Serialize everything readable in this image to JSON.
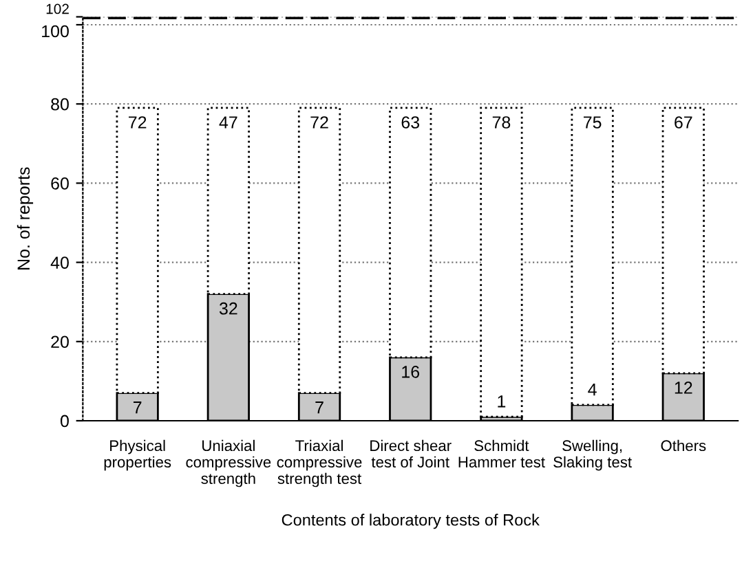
{
  "chart_data": {
    "type": "bar",
    "stacked": true,
    "xlabel": "Contents of laboratory tests of Rock",
    "ylabel": "No. of reports",
    "categories": [
      "Physical\nproperties",
      "Uniaxial\ncompressive\nstrength",
      "Triaxial\ncompressive\nstrength test",
      "Direct shear\ntest of Joint",
      "Schmidt\nHammer test",
      "Swelling,\nSlaking test",
      "Others"
    ],
    "series": [
      {
        "color": "#c8c8c8",
        "line_style": "solid",
        "values": [
          7,
          32,
          7,
          16,
          1,
          4,
          12
        ]
      },
      {
        "color": "#ffffff",
        "line_style": "dotted",
        "values": [
          72,
          47,
          72,
          63,
          78,
          75,
          67
        ]
      }
    ],
    "data_labels": true,
    "ylim": [
      0,
      102
    ],
    "yticks": [
      0,
      20,
      40,
      60,
      80,
      100,
      102
    ],
    "grid": "y",
    "ref_lines": [
      {
        "axis": "y",
        "value": 102,
        "line_style": "dashed",
        "color": "#000000"
      }
    ]
  }
}
